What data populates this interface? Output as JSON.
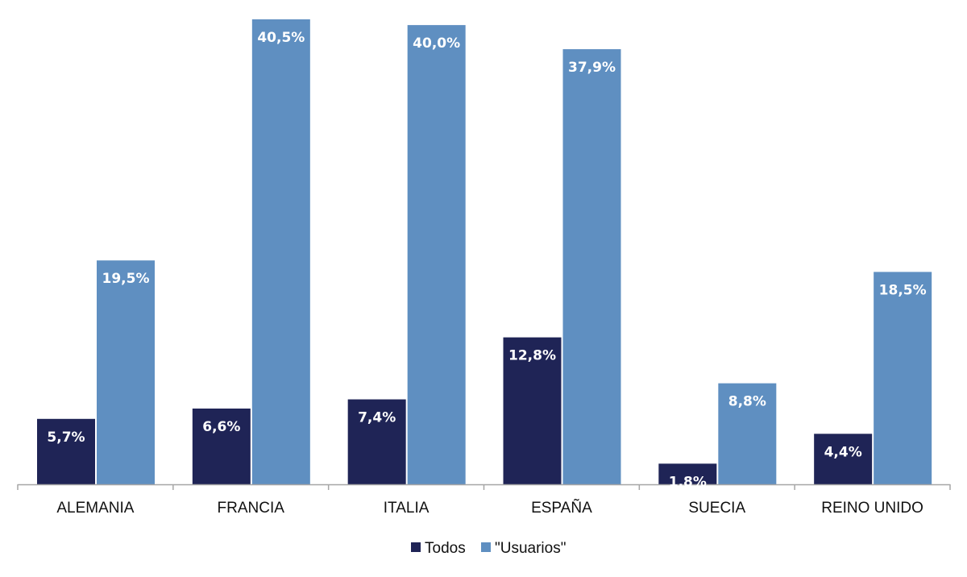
{
  "chart_data": {
    "type": "bar",
    "categories": [
      "ALEMANIA",
      "FRANCIA",
      "ITALIA",
      "ESPAÑA",
      "SUECIA",
      "REINO UNIDO"
    ],
    "series": [
      {
        "name": "Todos",
        "color": "#1f2456",
        "values": [
          5.7,
          6.6,
          7.4,
          12.8,
          1.8,
          4.4
        ],
        "labels": [
          "5,7%",
          "6,6%",
          "7,4%",
          "12,8%",
          "1,8%",
          "4,4%"
        ]
      },
      {
        "name": "\"Usuarios\"",
        "color": "#5f8fc1",
        "values": [
          19.5,
          40.5,
          40.0,
          37.9,
          8.8,
          18.5
        ],
        "labels": [
          "19,5%",
          "40,5%",
          "40,0%",
          "37,9%",
          "8,8%",
          "18,5%"
        ]
      }
    ],
    "ylim": [
      0,
      40.5
    ],
    "grid": false,
    "legend_position": "bottom",
    "axis_color": "#a6a6a6"
  }
}
